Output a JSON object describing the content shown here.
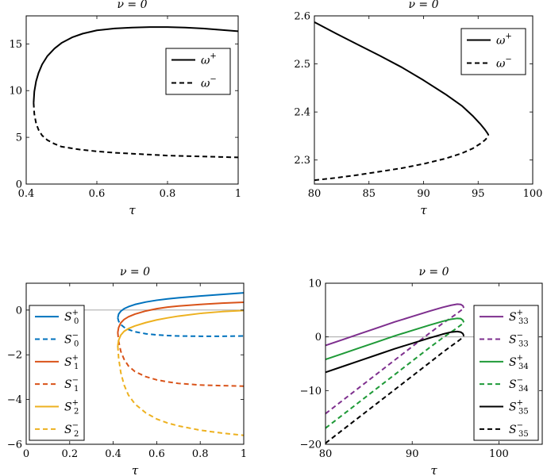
{
  "chart_data": [
    {
      "type": "line",
      "title": "ν = 0",
      "xlabel": "τ",
      "ylabel": "",
      "xlim": [
        0.4,
        1
      ],
      "ylim": [
        0,
        18
      ],
      "xticks": [
        0.4,
        0.6,
        0.8,
        1
      ],
      "xtick_labels": [
        "0.4",
        "0.6",
        "0.8",
        "1"
      ],
      "yticks": [
        0,
        5,
        10,
        15
      ],
      "ytick_labels": [
        "0",
        "5",
        "10",
        "15"
      ],
      "zero_line": false,
      "legend": {
        "position": "top-right"
      },
      "series": [
        {
          "name": "ω+",
          "label_base": "ω",
          "label_sup": "+",
          "label_sub": "",
          "color": "#000000",
          "dash": "solid",
          "x": [
            0.421,
            0.423,
            0.428,
            0.435,
            0.445,
            0.46,
            0.48,
            0.5,
            0.53,
            0.56,
            0.6,
            0.65,
            0.7,
            0.75,
            0.8,
            0.85,
            0.9,
            0.95,
            1.0
          ],
          "y": [
            8.7,
            9.9,
            11.0,
            11.9,
            12.8,
            13.7,
            14.5,
            15.1,
            15.7,
            16.1,
            16.45,
            16.65,
            16.75,
            16.8,
            16.8,
            16.75,
            16.65,
            16.5,
            16.35
          ]
        },
        {
          "name": "ω−",
          "label_base": "ω",
          "label_sup": "−",
          "label_sub": "",
          "color": "#000000",
          "dash": "dashed",
          "x": [
            0.421,
            0.423,
            0.428,
            0.435,
            0.445,
            0.46,
            0.48,
            0.5,
            0.55,
            0.6,
            0.65,
            0.7,
            0.75,
            0.8,
            0.85,
            0.9,
            0.95,
            1.0
          ],
          "y": [
            8.7,
            7.5,
            6.5,
            5.8,
            5.2,
            4.7,
            4.3,
            4.0,
            3.7,
            3.5,
            3.35,
            3.25,
            3.15,
            3.05,
            3.0,
            2.95,
            2.9,
            2.85
          ]
        }
      ]
    },
    {
      "type": "line",
      "title": "ν = 0",
      "xlabel": "τ",
      "ylabel": "",
      "xlim": [
        80,
        100
      ],
      "ylim": [
        2.25,
        2.6
      ],
      "xticks": [
        80,
        85,
        90,
        95,
        100
      ],
      "xtick_labels": [
        "80",
        "85",
        "90",
        "95",
        "100"
      ],
      "yticks": [
        2.3,
        2.4,
        2.5,
        2.6
      ],
      "ytick_labels": [
        "2.3",
        "2.4",
        "2.5",
        "2.6"
      ],
      "zero_line": false,
      "legend": {
        "position": "top-right"
      },
      "series": [
        {
          "name": "ω+",
          "label_base": "ω",
          "label_sup": "+",
          "label_sub": "",
          "color": "#000000",
          "dash": "solid",
          "x": [
            80,
            82,
            84,
            86,
            88,
            90,
            92,
            93.5,
            94.5,
            95.2,
            95.6,
            95.85,
            95.95
          ],
          "y": [
            2.587,
            2.563,
            2.54,
            2.517,
            2.493,
            2.466,
            2.437,
            2.413,
            2.392,
            2.375,
            2.364,
            2.356,
            2.352
          ]
        },
        {
          "name": "ω−",
          "label_base": "ω",
          "label_sup": "−",
          "label_sub": "",
          "color": "#000000",
          "dash": "dashed",
          "x": [
            80,
            82,
            84,
            86,
            88,
            90,
            92,
            93.5,
            94.5,
            95.2,
            95.6,
            95.85,
            95.95
          ],
          "y": [
            2.258,
            2.263,
            2.269,
            2.276,
            2.283,
            2.292,
            2.303,
            2.314,
            2.324,
            2.334,
            2.341,
            2.347,
            2.352
          ]
        }
      ]
    },
    {
      "type": "line",
      "title": "ν = 0",
      "xlabel": "τ",
      "ylabel": "",
      "xlim": [
        0,
        1
      ],
      "ylim": [
        -6,
        1.2
      ],
      "xticks": [
        0,
        0.2,
        0.4,
        0.6,
        0.8,
        1
      ],
      "xtick_labels": [
        "0",
        "0.2",
        "0.4",
        "0.6",
        "0.8",
        "1"
      ],
      "yticks": [
        -6,
        -4,
        -2,
        0
      ],
      "ytick_labels": [
        "−6",
        "−4",
        "−2",
        "0"
      ],
      "zero_line": true,
      "legend": {
        "position": "left"
      },
      "series": [
        {
          "name": "S0+",
          "label_base": "S",
          "label_sup": "+",
          "label_sub": "0",
          "color": "#0072bd",
          "dash": "solid",
          "x": [
            0.421,
            0.425,
            0.435,
            0.45,
            0.47,
            0.5,
            0.55,
            0.6,
            0.65,
            0.7,
            0.8,
            0.9,
            1.0
          ],
          "y": [
            -0.35,
            -0.18,
            -0.05,
            0.06,
            0.15,
            0.25,
            0.36,
            0.44,
            0.5,
            0.55,
            0.63,
            0.7,
            0.77
          ]
        },
        {
          "name": "S0−",
          "label_base": "S",
          "label_sup": "−",
          "label_sub": "0",
          "color": "#0072bd",
          "dash": "dashed",
          "x": [
            0.421,
            0.425,
            0.435,
            0.45,
            0.47,
            0.5,
            0.55,
            0.6,
            0.65,
            0.7,
            0.8,
            0.9,
            1.0
          ],
          "y": [
            -0.35,
            -0.5,
            -0.65,
            -0.77,
            -0.87,
            -0.97,
            -1.06,
            -1.11,
            -1.14,
            -1.16,
            -1.17,
            -1.17,
            -1.16
          ]
        },
        {
          "name": "S1+",
          "label_base": "S",
          "label_sup": "+",
          "label_sub": "1",
          "color": "#d95319",
          "dash": "solid",
          "x": [
            0.421,
            0.425,
            0.435,
            0.45,
            0.47,
            0.5,
            0.55,
            0.6,
            0.65,
            0.7,
            0.8,
            0.9,
            1.0
          ],
          "y": [
            -1.0,
            -0.78,
            -0.57,
            -0.42,
            -0.3,
            -0.18,
            -0.04,
            0.06,
            0.13,
            0.18,
            0.25,
            0.31,
            0.35
          ]
        },
        {
          "name": "S1−",
          "label_base": "S",
          "label_sup": "−",
          "label_sub": "1",
          "color": "#d95319",
          "dash": "dashed",
          "x": [
            0.421,
            0.425,
            0.435,
            0.45,
            0.47,
            0.5,
            0.55,
            0.6,
            0.65,
            0.7,
            0.8,
            0.9,
            1.0
          ],
          "y": [
            -1.0,
            -1.4,
            -1.85,
            -2.2,
            -2.5,
            -2.75,
            -2.98,
            -3.12,
            -3.21,
            -3.28,
            -3.35,
            -3.38,
            -3.4
          ]
        },
        {
          "name": "S2+",
          "label_base": "S",
          "label_sup": "+",
          "label_sub": "2",
          "color": "#edb120",
          "dash": "solid",
          "x": [
            0.421,
            0.425,
            0.435,
            0.45,
            0.47,
            0.5,
            0.55,
            0.6,
            0.65,
            0.7,
            0.8,
            0.9,
            1.0
          ],
          "y": [
            -1.6,
            -1.35,
            -1.12,
            -0.95,
            -0.83,
            -0.71,
            -0.56,
            -0.44,
            -0.35,
            -0.27,
            -0.15,
            -0.07,
            -0.02
          ]
        },
        {
          "name": "S2−",
          "label_base": "S",
          "label_sup": "−",
          "label_sub": "2",
          "color": "#edb120",
          "dash": "dashed",
          "x": [
            0.421,
            0.425,
            0.435,
            0.45,
            0.47,
            0.5,
            0.55,
            0.6,
            0.65,
            0.7,
            0.8,
            0.9,
            1.0
          ],
          "y": [
            -1.6,
            -2.15,
            -2.8,
            -3.35,
            -3.8,
            -4.2,
            -4.6,
            -4.87,
            -5.05,
            -5.18,
            -5.37,
            -5.5,
            -5.6
          ]
        }
      ]
    },
    {
      "type": "line",
      "title": "ν = 0",
      "xlabel": "τ",
      "ylabel": "",
      "xlim": [
        80,
        105
      ],
      "ylim": [
        -20,
        10
      ],
      "xticks": [
        80,
        90,
        100
      ],
      "xtick_labels": [
        "80",
        "90",
        "100"
      ],
      "yticks": [
        -20,
        -10,
        0,
        10
      ],
      "ytick_labels": [
        "−20",
        "−10",
        "0",
        "10"
      ],
      "zero_line": true,
      "legend": {
        "position": "right"
      },
      "series": [
        {
          "name": "S33+",
          "label_base": "S",
          "label_sup": "+",
          "label_sub": "33",
          "color": "#7e2f8e",
          "dash": "solid",
          "x": [
            80,
            82,
            84,
            86,
            88,
            90,
            92,
            93.5,
            94.5,
            95.2,
            95.6,
            95.85,
            95.95
          ],
          "y": [
            -1.6,
            -0.5,
            0.6,
            1.7,
            2.8,
            3.8,
            4.8,
            5.5,
            5.9,
            6.1,
            6.05,
            5.8,
            5.4
          ]
        },
        {
          "name": "S33−",
          "label_base": "S",
          "label_sup": "−",
          "label_sub": "33",
          "color": "#7e2f8e",
          "dash": "dashed",
          "x": [
            80,
            82,
            84,
            86,
            88,
            90,
            92,
            93.5,
            94.5,
            95.2,
            95.6,
            95.85,
            95.95
          ],
          "y": [
            -14.3,
            -11.8,
            -9.3,
            -6.8,
            -4.3,
            -1.8,
            0.7,
            2.5,
            3.6,
            4.4,
            4.9,
            5.2,
            5.4
          ]
        },
        {
          "name": "S34+",
          "label_base": "S",
          "label_sup": "+",
          "label_sub": "34",
          "color": "#1f9a38",
          "dash": "solid",
          "x": [
            80,
            82,
            84,
            86,
            88,
            90,
            92,
            93.5,
            94.5,
            95.2,
            95.6,
            95.85,
            95.95
          ],
          "y": [
            -4.2,
            -3.1,
            -2.0,
            -0.9,
            0.2,
            1.2,
            2.2,
            2.9,
            3.3,
            3.45,
            3.4,
            3.1,
            2.7
          ]
        },
        {
          "name": "S34−",
          "label_base": "S",
          "label_sup": "−",
          "label_sub": "34",
          "color": "#1f9a38",
          "dash": "dashed",
          "x": [
            80,
            82,
            84,
            86,
            88,
            90,
            92,
            93.5,
            94.5,
            95.2,
            95.6,
            95.85,
            95.95
          ],
          "y": [
            -17.0,
            -14.5,
            -12.0,
            -9.5,
            -7.0,
            -4.5,
            -2.0,
            -0.2,
            0.9,
            1.7,
            2.2,
            2.5,
            2.7
          ]
        },
        {
          "name": "S35+",
          "label_base": "S",
          "label_sup": "+",
          "label_sub": "35",
          "color": "#000000",
          "dash": "solid",
          "x": [
            80,
            82,
            84,
            86,
            88,
            90,
            92,
            93.5,
            94.5,
            95.2,
            95.6,
            95.85,
            95.95
          ],
          "y": [
            -6.6,
            -5.5,
            -4.4,
            -3.3,
            -2.2,
            -1.2,
            -0.2,
            0.5,
            0.9,
            1.0,
            0.9,
            0.6,
            0.2
          ]
        },
        {
          "name": "S35−",
          "label_base": "S",
          "label_sup": "−",
          "label_sub": "35",
          "color": "#000000",
          "dash": "dashed",
          "x": [
            80,
            82,
            84,
            86,
            88,
            90,
            92,
            93.5,
            94.5,
            95.2,
            95.6,
            95.85,
            95.95
          ],
          "y": [
            -19.8,
            -17.3,
            -14.8,
            -12.3,
            -9.8,
            -7.3,
            -4.8,
            -2.9,
            -1.7,
            -0.9,
            -0.4,
            -0.1,
            0.2
          ]
        }
      ]
    }
  ]
}
